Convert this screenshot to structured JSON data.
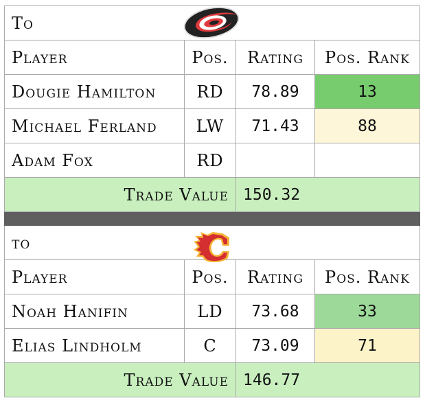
{
  "trades": [
    {
      "to_label": "To",
      "team_logo": "carolina-hurricanes-logo",
      "headers": {
        "player": "Player",
        "pos": "Pos.",
        "rating": "Rating",
        "rank": "Pos. Rank"
      },
      "players": [
        {
          "name": "Dougie Hamilton",
          "pos": "RD",
          "rating": "78.89",
          "rank": "13",
          "rank_color": "#77cc6e"
        },
        {
          "name": "Michael Ferland",
          "pos": "LW",
          "rating": "71.43",
          "rank": "88",
          "rank_color": "#fdf6d8"
        },
        {
          "name": "Adam Fox",
          "pos": "RD",
          "rating": "",
          "rank": "",
          "rank_color": "#ffffff"
        }
      ],
      "trade_value_label": "Trade Value",
      "trade_value": "150.32"
    },
    {
      "to_label": "to",
      "team_logo": "calgary-flames-logo",
      "headers": {
        "player": "Player",
        "pos": "Pos.",
        "rating": "Rating",
        "rank": "Pos. Rank"
      },
      "players": [
        {
          "name": "Noah Hanifin",
          "pos": "LD",
          "rating": "73.68",
          "rank": "33",
          "rank_color": "#9dd999"
        },
        {
          "name": "Elias Lindholm",
          "pos": "C",
          "rating": "73.09",
          "rank": "71",
          "rank_color": "#fcf3c8"
        }
      ],
      "trade_value_label": "Trade Value",
      "trade_value": "146.77"
    }
  ],
  "colors": {
    "trade_value_bg": "#c9efbf",
    "separator": "#5f5f5f"
  }
}
